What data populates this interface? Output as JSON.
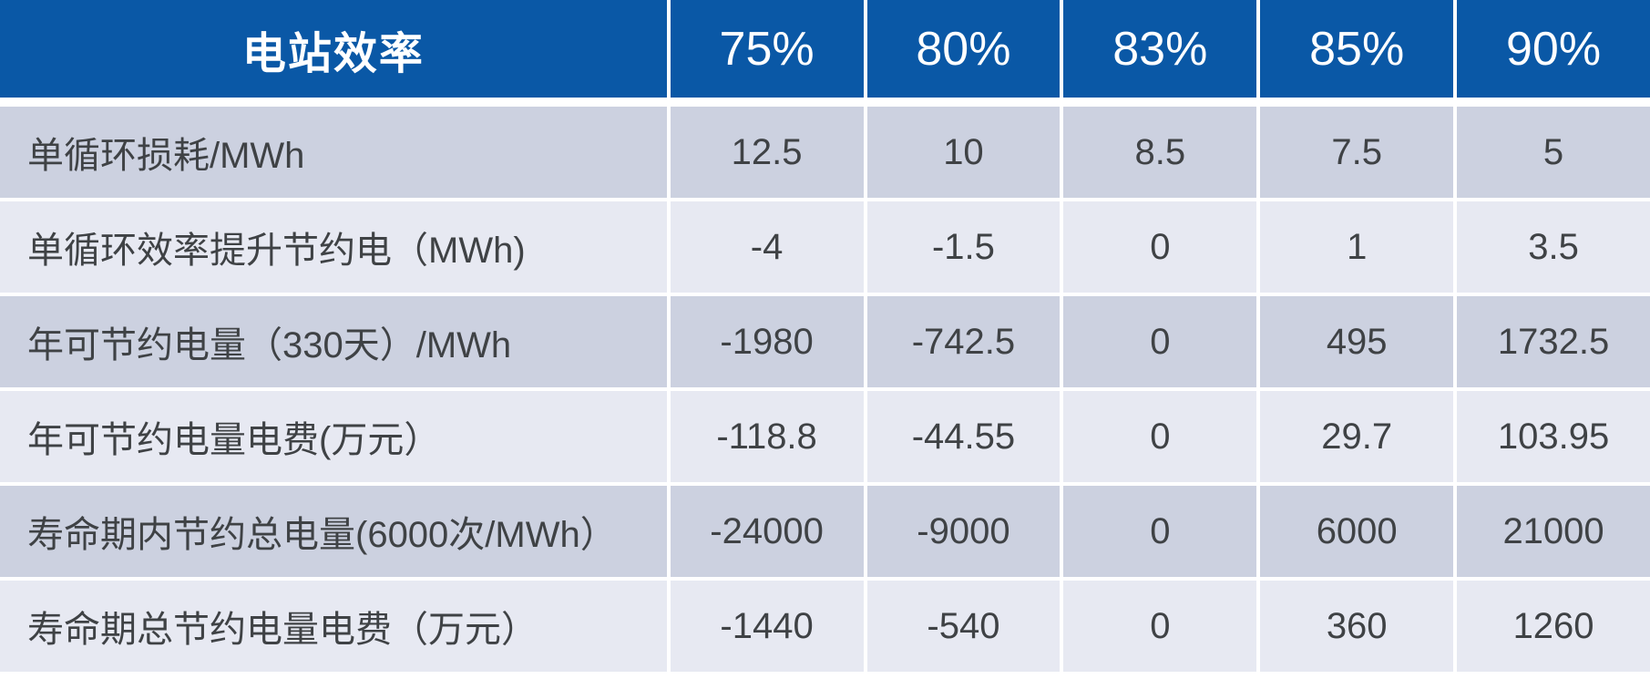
{
  "table": {
    "header": {
      "title": "电站效率",
      "columns": [
        "75%",
        "80%",
        "83%",
        "85%",
        "90%"
      ]
    },
    "rows": [
      {
        "label": "单循环损耗/MWh",
        "values": [
          "12.5",
          "10",
          "8.5",
          "7.5",
          "5"
        ]
      },
      {
        "label": "单循环效率提升节约电（MWh)",
        "values": [
          "-4",
          "-1.5",
          "0",
          "1",
          "3.5"
        ]
      },
      {
        "label": "年可节约电量（330天）/MWh",
        "values": [
          "-1980",
          "-742.5",
          "0",
          "495",
          "1732.5"
        ]
      },
      {
        "label": "年可节约电量电费(万元）",
        "values": [
          "-118.8",
          "-44.55",
          "0",
          "29.7",
          "103.95"
        ]
      },
      {
        "label": "寿命期内节约总电量(6000次/MWh）",
        "values": [
          "-24000",
          "-9000",
          "0",
          "6000",
          "21000"
        ]
      },
      {
        "label": "寿命期总节约电量电费（万元）",
        "values": [
          "-1440",
          "-540",
          "0",
          "360",
          "1260"
        ]
      }
    ]
  },
  "colors": {
    "header_bg": "#0A58A6",
    "header_text": "#FFFFFF",
    "row_dark": "#CCD1E0",
    "row_light": "#E7E9F2",
    "text": "#3F4245",
    "divider": "#FFFFFF"
  },
  "chart_data": {
    "type": "table",
    "title": "电站效率",
    "columns": [
      "电站效率",
      "75%",
      "80%",
      "83%",
      "85%",
      "90%"
    ],
    "rows": [
      [
        "单循环损耗/MWh",
        12.5,
        10,
        8.5,
        7.5,
        5
      ],
      [
        "单循环效率提升节约电（MWh)",
        -4,
        -1.5,
        0,
        1,
        3.5
      ],
      [
        "年可节约电量（330天）/MWh",
        -1980,
        -742.5,
        0,
        495,
        1732.5
      ],
      [
        "年可节约电量电费(万元）",
        -118.8,
        -44.55,
        0,
        29.7,
        103.95
      ],
      [
        "寿命期内节约总电量(6000次/MWh）",
        -24000,
        -9000,
        0,
        6000,
        21000
      ],
      [
        "寿命期总节约电量电费（万元）",
        -1440,
        -540,
        0,
        360,
        1260
      ]
    ],
    "layout_hints": {
      "header_style": "blue band, white centered text",
      "body_style": "alternating light blue-gray rows, white grid gaps",
      "first_column_align": "left",
      "value_align": "center"
    }
  }
}
